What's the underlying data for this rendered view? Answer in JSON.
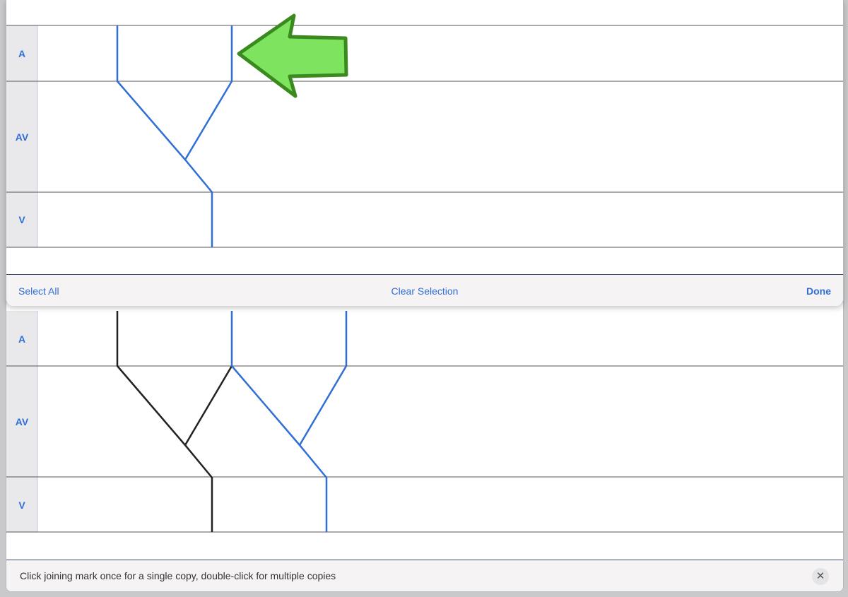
{
  "colors": {
    "accent": "#2f6fd6",
    "stroke_black": "#222222",
    "arrow_fill": "#7ee35f",
    "arrow_outline": "#3b8a1f",
    "label_column_bg": "#e9e9eb",
    "toolbar_bg": "#f5f3f3"
  },
  "top_editor": {
    "rows": [
      {
        "label": "A"
      },
      {
        "label": "AV"
      },
      {
        "label": "V"
      }
    ],
    "toolbar": {
      "select_all_label": "Select All",
      "clear_selection_label": "Clear Selection",
      "done_label": "Done"
    }
  },
  "bottom_editor": {
    "rows": [
      {
        "label": "A"
      },
      {
        "label": "AV"
      },
      {
        "label": "V"
      }
    ]
  },
  "hint_bar": {
    "text": "Click joining mark once for a single copy, double-click for multiple copies",
    "close_icon": "close-icon"
  },
  "annotation": {
    "icon": "left-arrow-icon"
  }
}
